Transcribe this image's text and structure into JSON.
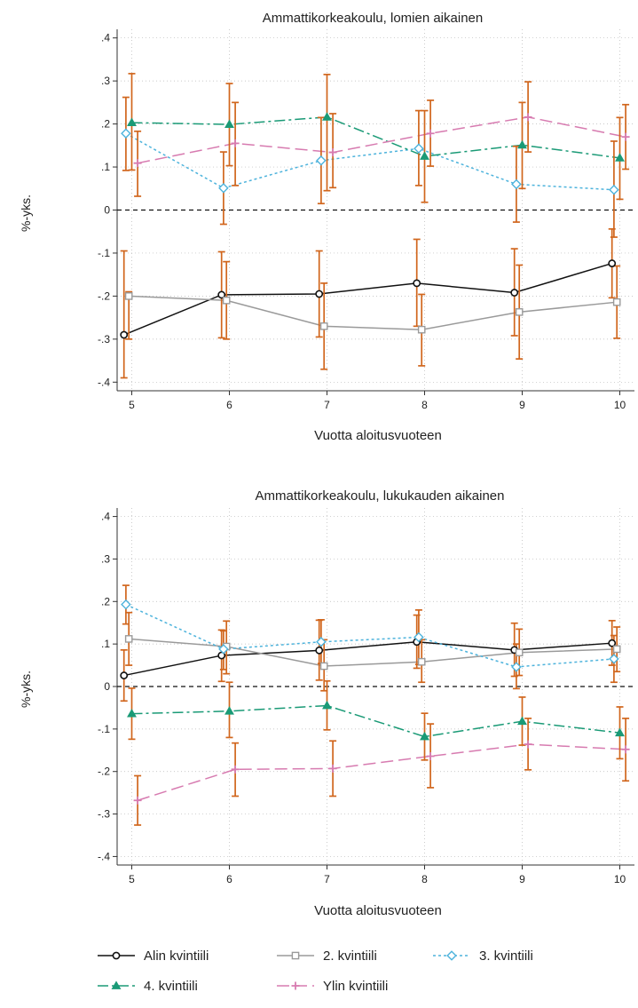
{
  "chart_data": [
    {
      "type": "line",
      "title": "Ammattikorkeakoulu, lomien aikainen",
      "xlabel": "Vuotta aloitusvuoteen",
      "ylabel": "%-yks.",
      "x_ticks": [
        5,
        6,
        7,
        8,
        9,
        10
      ],
      "y_ticks": [
        -0.4,
        -0.3,
        -0.2,
        -0.1,
        0,
        0.1,
        0.2,
        0.3,
        0.4
      ],
      "y_tick_labels": [
        "-.4",
        "-.3",
        "-.2",
        "-.1",
        "0",
        ".1",
        ".2",
        ".3",
        ".4"
      ],
      "xlim": [
        4.85,
        10.15
      ],
      "ylim": [
        -0.42,
        0.42
      ],
      "grid": true,
      "reference_line": 0,
      "series": [
        {
          "name": "Alin kvintiili",
          "x": [
            4.92,
            5.92,
            6.92,
            7.92,
            8.92,
            9.92
          ],
          "values": [
            -0.29,
            -0.197,
            -0.195,
            -0.17,
            -0.192,
            -0.124
          ],
          "ci_low": [
            -0.39,
            -0.297,
            -0.295,
            -0.27,
            -0.292,
            -0.204
          ],
          "ci_high": [
            -0.095,
            -0.097,
            -0.095,
            -0.068,
            -0.09,
            -0.044
          ]
        },
        {
          "name": "2. kvintiili",
          "x": [
            4.97,
            5.97,
            6.97,
            7.97,
            8.97,
            9.97
          ],
          "values": [
            -0.2,
            -0.21,
            -0.27,
            -0.278,
            -0.237,
            -0.214
          ],
          "ci_low": [
            -0.3,
            -0.3,
            -0.37,
            -0.362,
            -0.346,
            -0.298
          ],
          "ci_high": [
            -0.19,
            -0.12,
            -0.17,
            -0.196,
            -0.128,
            -0.13
          ]
        },
        {
          "name": "3. kvintiili",
          "x": [
            4.94,
            5.94,
            6.94,
            7.94,
            8.94,
            9.94
          ],
          "values": [
            0.178,
            0.051,
            0.115,
            0.143,
            0.06,
            0.047
          ],
          "ci_low": [
            0.092,
            -0.033,
            0.015,
            0.057,
            -0.028,
            -0.063
          ],
          "ci_high": [
            0.262,
            0.135,
            0.215,
            0.231,
            0.148,
            0.16
          ]
        },
        {
          "name": "4. kvintiili",
          "x": [
            5.0,
            6.0,
            7.0,
            8.0,
            9.0,
            10.0
          ],
          "values": [
            0.203,
            0.199,
            0.216,
            0.125,
            0.151,
            0.121
          ],
          "ci_low": [
            0.093,
            0.103,
            0.045,
            0.018,
            0.05,
            0.025
          ],
          "ci_high": [
            0.317,
            0.294,
            0.315,
            0.231,
            0.25,
            0.215
          ]
        },
        {
          "name": "Ylin kvintiili",
          "x": [
            5.06,
            6.06,
            7.06,
            8.06,
            9.06,
            10.06
          ],
          "values": [
            0.109,
            0.155,
            0.134,
            0.178,
            0.216,
            0.17
          ],
          "ci_low": [
            0.032,
            0.057,
            0.052,
            0.102,
            0.135,
            0.095
          ],
          "ci_high": [
            0.183,
            0.25,
            0.224,
            0.255,
            0.298,
            0.245
          ]
        }
      ]
    },
    {
      "type": "line",
      "title": "Ammattikorkeakoulu, lukukauden aikainen",
      "xlabel": "Vuotta aloitusvuoteen",
      "ylabel": "%-yks.",
      "x_ticks": [
        5,
        6,
        7,
        8,
        9,
        10
      ],
      "y_ticks": [
        -0.4,
        -0.3,
        -0.2,
        -0.1,
        0,
        0.1,
        0.2,
        0.3,
        0.4
      ],
      "y_tick_labels": [
        "-.4",
        "-.3",
        "-.2",
        "-.1",
        "0",
        ".1",
        ".2",
        ".3",
        ".4"
      ],
      "xlim": [
        4.85,
        10.15
      ],
      "ylim": [
        -0.42,
        0.42
      ],
      "grid": true,
      "reference_line": 0,
      "series": [
        {
          "name": "Alin kvintiili",
          "x": [
            4.92,
            5.92,
            6.92,
            7.92,
            8.92,
            9.92
          ],
          "values": [
            0.026,
            0.073,
            0.085,
            0.105,
            0.086,
            0.102
          ],
          "ci_low": [
            -0.034,
            0.012,
            0.015,
            0.043,
            0.024,
            0.05
          ],
          "ci_high": [
            0.086,
            0.133,
            0.156,
            0.168,
            0.149,
            0.155
          ]
        },
        {
          "name": "2. kvintiili",
          "x": [
            4.97,
            5.97,
            6.97,
            7.97,
            8.97,
            9.97
          ],
          "values": [
            0.112,
            0.094,
            0.048,
            0.058,
            0.08,
            0.088
          ],
          "ci_low": [
            0.05,
            0.03,
            -0.01,
            0.01,
            0.026,
            0.035
          ],
          "ci_high": [
            0.174,
            0.154,
            0.11,
            0.11,
            0.135,
            0.14
          ]
        },
        {
          "name": "3. kvintiili",
          "x": [
            4.94,
            5.94,
            6.94,
            7.94,
            8.94,
            9.94
          ],
          "values": [
            0.193,
            0.088,
            0.105,
            0.116,
            0.046,
            0.065
          ],
          "ci_low": [
            0.147,
            0.04,
            0.054,
            0.052,
            -0.005,
            0.01
          ],
          "ci_high": [
            0.238,
            0.131,
            0.157,
            0.18,
            0.1,
            0.12
          ]
        },
        {
          "name": "4. kvintiili",
          "x": [
            5.0,
            6.0,
            7.0,
            8.0,
            9.0,
            10.0
          ],
          "values": [
            -0.064,
            -0.058,
            -0.045,
            -0.118,
            -0.082,
            -0.109
          ],
          "ci_low": [
            -0.124,
            -0.12,
            -0.102,
            -0.173,
            -0.138,
            -0.17
          ],
          "ci_high": [
            -0.004,
            0.01,
            0.013,
            -0.063,
            -0.025,
            -0.048
          ]
        },
        {
          "name": "Ylin kvintiili",
          "x": [
            5.06,
            6.06,
            7.06,
            8.06,
            9.06,
            10.06
          ],
          "values": [
            -0.268,
            -0.195,
            -0.193,
            -0.164,
            -0.136,
            -0.148
          ],
          "ci_low": [
            -0.326,
            -0.258,
            -0.258,
            -0.238,
            -0.196,
            -0.222
          ],
          "ci_high": [
            -0.21,
            -0.133,
            -0.128,
            -0.088,
            -0.075,
            -0.075
          ]
        }
      ]
    }
  ],
  "style": {
    "ci_color": "#d1661d",
    "zero_line_color": "#111111",
    "grid_color": "#b7b7b7",
    "series_colors": [
      "#111111",
      "#9a9a9a",
      "#4db3dc",
      "#1a9a76",
      "#d77bb0"
    ],
    "series_markers": [
      "circle-icon",
      "square-icon",
      "diamond-icon",
      "triangle-icon",
      "plus-icon"
    ],
    "series_dash": [
      "",
      "",
      "3,3",
      "12,4,3,4",
      "14,6"
    ]
  }
}
